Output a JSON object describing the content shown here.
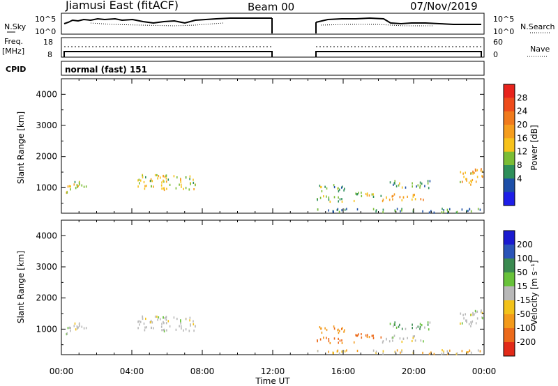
{
  "header": {
    "station": "Jiamusi East (fitACF)",
    "beam": "Beam 00",
    "date": "07/Nov/2019"
  },
  "panels": {
    "nsky_label": "N.Sky",
    "nsky_ticks": [
      "10^5",
      "10^0"
    ],
    "nsearch_label": "N.Search",
    "nsearch_ticks": [
      "10^5",
      "10^0"
    ],
    "freq_label_1": "Freq.",
    "freq_label_2": "[MHz]",
    "freq_ticks": [
      "18",
      "8"
    ],
    "nave_label": "Nave",
    "nave_ticks": [
      "60",
      "0"
    ],
    "cpid_label": "CPID",
    "cpid_value": "normal (fast) 151"
  },
  "xaxis": {
    "label": "Time UT",
    "ticks": [
      "00:00",
      "04:00",
      "08:00",
      "12:00",
      "16:00",
      "20:00",
      "00:00"
    ]
  },
  "colorbars": {
    "power": {
      "label": "Power [dB]",
      "ticks": [
        "28",
        "24",
        "20",
        "16",
        "12",
        "8",
        "4"
      ],
      "colors": [
        "#e8231c",
        "#ee4b1b",
        "#f07a1c",
        "#f59d1d",
        "#f7c21b",
        "#7bbd35",
        "#2e8f5a",
        "#1d4fa8",
        "#1e1ee8"
      ]
    },
    "velocity": {
      "label": "Velocity [m s⁻¹]",
      "ticks": [
        "200",
        "100",
        "50",
        "15",
        "-15",
        "-50",
        "-100",
        "-200"
      ],
      "colors": [
        "#1a1ad0",
        "#2a54b8",
        "#3a8a50",
        "#68c23a",
        "#b8b8b8",
        "#f2c21a",
        "#f39a1a",
        "#ec6a1a",
        "#e22a18"
      ]
    }
  },
  "chart_data": [
    {
      "type": "heatmap",
      "title": "",
      "xlabel": "Time UT",
      "ylabel": "Slant Range [km]",
      "xlim": [
        0,
        24
      ],
      "ylim": [
        180,
        4500
      ],
      "yticks": [
        1000,
        2000,
        3000,
        4000
      ],
      "quantity": "Power [dB]",
      "zlim": [
        0,
        30
      ],
      "blobs": [
        {
          "t0": 0.2,
          "t1": 1.4,
          "r0": 850,
          "r1": 1250,
          "level": 14
        },
        {
          "t0": 4.3,
          "t1": 7.6,
          "r0": 950,
          "r1": 1450,
          "level": 14
        },
        {
          "t0": 14.5,
          "t1": 16.1,
          "r0": 900,
          "r1": 1150,
          "level": 10
        },
        {
          "t0": 14.5,
          "t1": 16.6,
          "r0": 580,
          "r1": 760,
          "level": 12
        },
        {
          "t0": 16.6,
          "t1": 18.2,
          "r0": 680,
          "r1": 900,
          "level": 13
        },
        {
          "t0": 18.2,
          "t1": 20.6,
          "r0": 600,
          "r1": 820,
          "level": 18
        },
        {
          "t0": 18.6,
          "t1": 20.9,
          "r0": 1000,
          "r1": 1250,
          "level": 9
        },
        {
          "t0": 14.5,
          "t1": 23.9,
          "r0": 230,
          "r1": 360,
          "level": 8
        },
        {
          "t0": 22.6,
          "t1": 23.9,
          "r0": 1100,
          "r1": 1650,
          "level": 17
        }
      ]
    },
    {
      "type": "heatmap",
      "title": "",
      "xlabel": "Time UT",
      "ylabel": "Slant Range [km]",
      "xlim": [
        0,
        24
      ],
      "ylim": [
        180,
        4500
      ],
      "yticks": [
        1000,
        2000,
        3000,
        4000
      ],
      "quantity": "Velocity [m s⁻¹]",
      "zlim": [
        -200,
        200
      ],
      "blobs": [
        {
          "t0": 0.2,
          "t1": 1.4,
          "r0": 850,
          "r1": 1250,
          "level": 0
        },
        {
          "t0": 4.3,
          "t1": 7.6,
          "r0": 950,
          "r1": 1450,
          "level": 0
        },
        {
          "t0": 14.5,
          "t1": 16.1,
          "r0": 900,
          "r1": 1150,
          "level": -60
        },
        {
          "t0": 14.5,
          "t1": 16.6,
          "r0": 580,
          "r1": 760,
          "level": -80
        },
        {
          "t0": 16.6,
          "t1": 18.2,
          "r0": 680,
          "r1": 900,
          "level": -90
        },
        {
          "t0": 18.2,
          "t1": 20.6,
          "r0": 600,
          "r1": 820,
          "level": 0
        },
        {
          "t0": 18.6,
          "t1": 20.9,
          "r0": 1000,
          "r1": 1250,
          "level": 30
        },
        {
          "t0": 14.5,
          "t1": 23.9,
          "r0": 230,
          "r1": 360,
          "level": -20
        },
        {
          "t0": 22.6,
          "t1": 23.9,
          "r0": 1100,
          "r1": 1650,
          "level": 0
        }
      ]
    }
  ]
}
